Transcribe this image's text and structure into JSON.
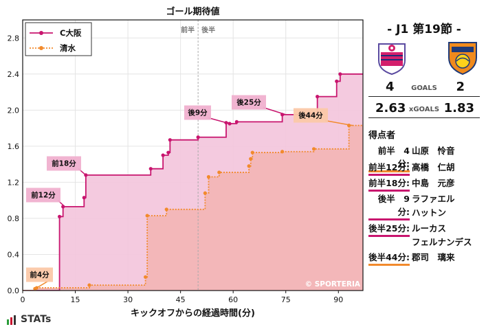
{
  "chart_data": {
    "type": "line",
    "title": "ゴール期待値",
    "xlabel": "キックオフからの経過時間(分)",
    "ylabel": "",
    "xlim": [
      0,
      97
    ],
    "ylim": [
      0,
      3.0
    ],
    "x_ticks": [
      0,
      15,
      30,
      45,
      60,
      75,
      90
    ],
    "y_ticks": [
      0.0,
      0.4,
      0.8,
      1.2,
      1.6,
      2.0,
      2.4,
      2.8
    ],
    "grid": true,
    "legend_position": "top-left",
    "half_marker": {
      "x": 50,
      "labels": [
        "前半",
        "後半"
      ]
    },
    "watermark": "© SPORTERIA",
    "series": [
      {
        "name": "C大阪",
        "color": "#c8156e",
        "fill": "#f3c4dc",
        "style": "solid",
        "points": [
          [
            10.5,
            0.82
          ],
          [
            11.5,
            0.93
          ],
          [
            17.5,
            1.03
          ],
          [
            18,
            1.28
          ],
          [
            36.5,
            1.35
          ],
          [
            40.0,
            1.5
          ],
          [
            41.5,
            1.53
          ],
          [
            42.0,
            1.67
          ],
          [
            50,
            1.7
          ],
          [
            58,
            1.86
          ],
          [
            59,
            1.85
          ],
          [
            61,
            1.87
          ],
          [
            74,
            1.95
          ],
          [
            82,
            1.96
          ],
          [
            84,
            2.15
          ],
          [
            89.5,
            2.32
          ],
          [
            90.5,
            2.4
          ],
          [
            100,
            2.61
          ],
          [
            102,
            2.62
          ]
        ]
      },
      {
        "name": "清水",
        "color": "#f28a2c",
        "fill": "#f3b5b5",
        "style": "dotted",
        "points": [
          [
            3.5,
            0.02
          ],
          [
            4.0,
            0.03
          ],
          [
            19,
            0.06
          ],
          [
            35,
            0.15
          ],
          [
            35.5,
            0.83
          ],
          [
            41,
            0.9
          ],
          [
            52,
            1.08
          ],
          [
            53,
            1.26
          ],
          [
            56,
            1.31
          ],
          [
            64.5,
            1.38
          ],
          [
            65,
            1.46
          ],
          [
            65.5,
            1.53
          ],
          [
            74,
            1.54
          ],
          [
            83,
            1.57
          ],
          [
            93,
            1.83
          ],
          [
            104,
            1.83
          ]
        ]
      }
    ],
    "annotations": [
      {
        "text": "前4分",
        "team": "清水",
        "x": 4
      },
      {
        "text": "前12分",
        "team": "C大阪",
        "x": 12
      },
      {
        "text": "前18分",
        "team": "C大阪",
        "x": 18
      },
      {
        "text": "後9分",
        "team": "C大阪",
        "x": 59
      },
      {
        "text": "後25分",
        "team": "C大阪",
        "x": 75
      },
      {
        "text": "後44分",
        "team": "清水",
        "x": 94
      }
    ]
  },
  "match": {
    "round": "- J1 第19節 -",
    "home": {
      "name": "C大阪",
      "goals": "4",
      "xg": "2.63",
      "color": "#c8156e"
    },
    "away": {
      "name": "清水",
      "goals": "2",
      "xg": "1.83",
      "color": "#f28a2c"
    },
    "goals_label": "GOALS",
    "xg_label": "xGOALS"
  },
  "scorers_title": "得点者",
  "scorers": [
    {
      "time": "前半　4分:",
      "name": "山原　怜音",
      "team": "清水"
    },
    {
      "time": "前半12分:",
      "name": "高橋　仁胡",
      "team": "C大阪"
    },
    {
      "time": "前半18分:",
      "name": "中島　元彦",
      "team": "C大阪"
    },
    {
      "time": "後半　9分:",
      "name": "ラファエル",
      "name2": "ハットン",
      "team": "C大阪"
    },
    {
      "time": "後半25分:",
      "name": "ルーカス",
      "name2": "フェルナンデス",
      "team": "C大阪"
    },
    {
      "time": "後半44分:",
      "name": "郡司　璃来",
      "team": "清水"
    }
  ],
  "brand": "STATs"
}
